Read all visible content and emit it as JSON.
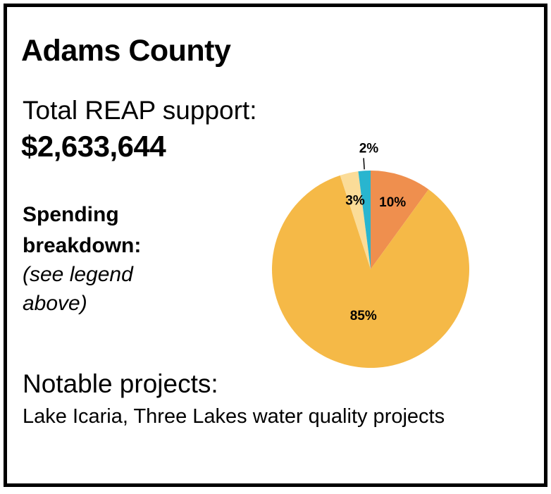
{
  "title": "Adams County",
  "support": {
    "label": "Total REAP support:",
    "value": "$2,633,644"
  },
  "breakdown": {
    "heading": "Spending breakdown:",
    "note": "(see legend above)"
  },
  "projects": {
    "heading": "Notable projects:",
    "text": "Lake Icaria, Three Lakes water quality projects"
  },
  "chart_data": {
    "type": "pie",
    "title": "",
    "slices": [
      {
        "label": "10%",
        "value": 10,
        "color": "#ef8f4e"
      },
      {
        "label": "85%",
        "value": 85,
        "color": "#f5b947"
      },
      {
        "label": "3%",
        "value": 3,
        "color": "#fbdc98"
      },
      {
        "label": "2%",
        "value": 2,
        "color": "#29b5cf"
      }
    ]
  }
}
